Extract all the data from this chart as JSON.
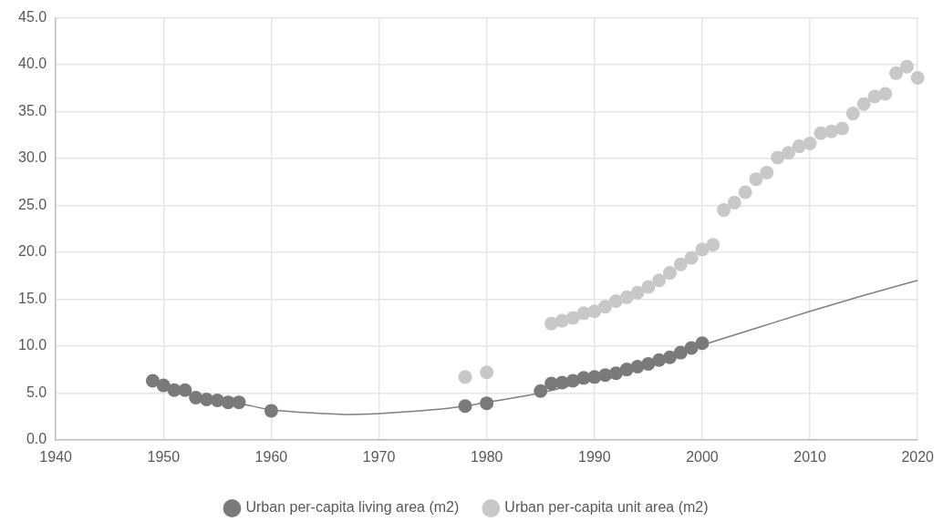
{
  "chart_data": {
    "type": "scatter",
    "xlim": [
      1940,
      2020
    ],
    "xticks": [
      1940,
      1950,
      1960,
      1970,
      1980,
      1990,
      2000,
      2010,
      2020
    ],
    "ylim": [
      0,
      45
    ],
    "yticks": [
      {
        "value": 0,
        "label": "0.0"
      },
      {
        "value": 5,
        "label": "5.0"
      },
      {
        "value": 10,
        "label": "10.0"
      },
      {
        "value": 15,
        "label": "15.0"
      },
      {
        "value": 20,
        "label": "20.0"
      },
      {
        "value": 25,
        "label": "25.0"
      },
      {
        "value": 30,
        "label": "30.0"
      },
      {
        "value": 35,
        "label": "35.0"
      },
      {
        "value": 40,
        "label": "40.0"
      },
      {
        "value": 45,
        "label": "45.0"
      }
    ],
    "grid": true,
    "legend": "bottom",
    "marker": "circle",
    "series": [
      {
        "name": "Urban per-capita living area (m2)",
        "color": "#7a7a7a",
        "x": [
          1949,
          1950,
          1951,
          1952,
          1953,
          1954,
          1955,
          1956,
          1957,
          1960,
          1978,
          1980,
          1985,
          1986,
          1987,
          1988,
          1989,
          1990,
          1991,
          1992,
          1993,
          1994,
          1995,
          1996,
          1997,
          1998,
          1999,
          2000
        ],
        "values": [
          6.3,
          5.8,
          5.3,
          5.3,
          4.5,
          4.3,
          4.2,
          4.0,
          4.0,
          3.1,
          3.6,
          3.9,
          5.2,
          6.0,
          6.1,
          6.3,
          6.6,
          6.7,
          6.9,
          7.1,
          7.5,
          7.8,
          8.1,
          8.5,
          8.8,
          9.3,
          9.8,
          10.3
        ]
      },
      {
        "name": "Urban per-capita unit area (m2)",
        "color": "#c8c8c8",
        "x": [
          1978,
          1980,
          1986,
          1987,
          1988,
          1989,
          1990,
          1991,
          1992,
          1993,
          1994,
          1995,
          1996,
          1997,
          1998,
          1999,
          2000,
          2001,
          2002,
          2003,
          2004,
          2005,
          2006,
          2007,
          2008,
          2009,
          2010,
          2011,
          2012,
          2013,
          2014,
          2015,
          2016,
          2017,
          2018,
          2019,
          2020
        ],
        "values": [
          6.7,
          7.2,
          12.4,
          12.7,
          13.0,
          13.5,
          13.7,
          14.2,
          14.8,
          15.2,
          15.7,
          16.3,
          17.0,
          17.8,
          18.7,
          19.4,
          20.3,
          20.8,
          24.5,
          25.3,
          26.4,
          27.8,
          28.5,
          30.1,
          30.6,
          31.3,
          31.6,
          32.7,
          32.9,
          33.2,
          34.8,
          35.8,
          36.6,
          36.9,
          39.1,
          39.8,
          38.6
        ]
      },
      {
        "type": "line",
        "color": "#7f7f7f",
        "marker": "none",
        "x": [
          1949,
          1952,
          1955,
          1957,
          1960,
          1965,
          1967,
          1970,
          1975,
          1978,
          1980,
          1985,
          1990,
          1995,
          2000,
          2005,
          2010,
          2015,
          2020
        ],
        "values": [
          6.0,
          5.0,
          4.3,
          3.9,
          3.2,
          2.8,
          2.7,
          2.8,
          3.2,
          3.6,
          4.0,
          5.0,
          6.5,
          8.2,
          10.1,
          11.9,
          13.7,
          15.4,
          17.0
        ]
      }
    ]
  }
}
